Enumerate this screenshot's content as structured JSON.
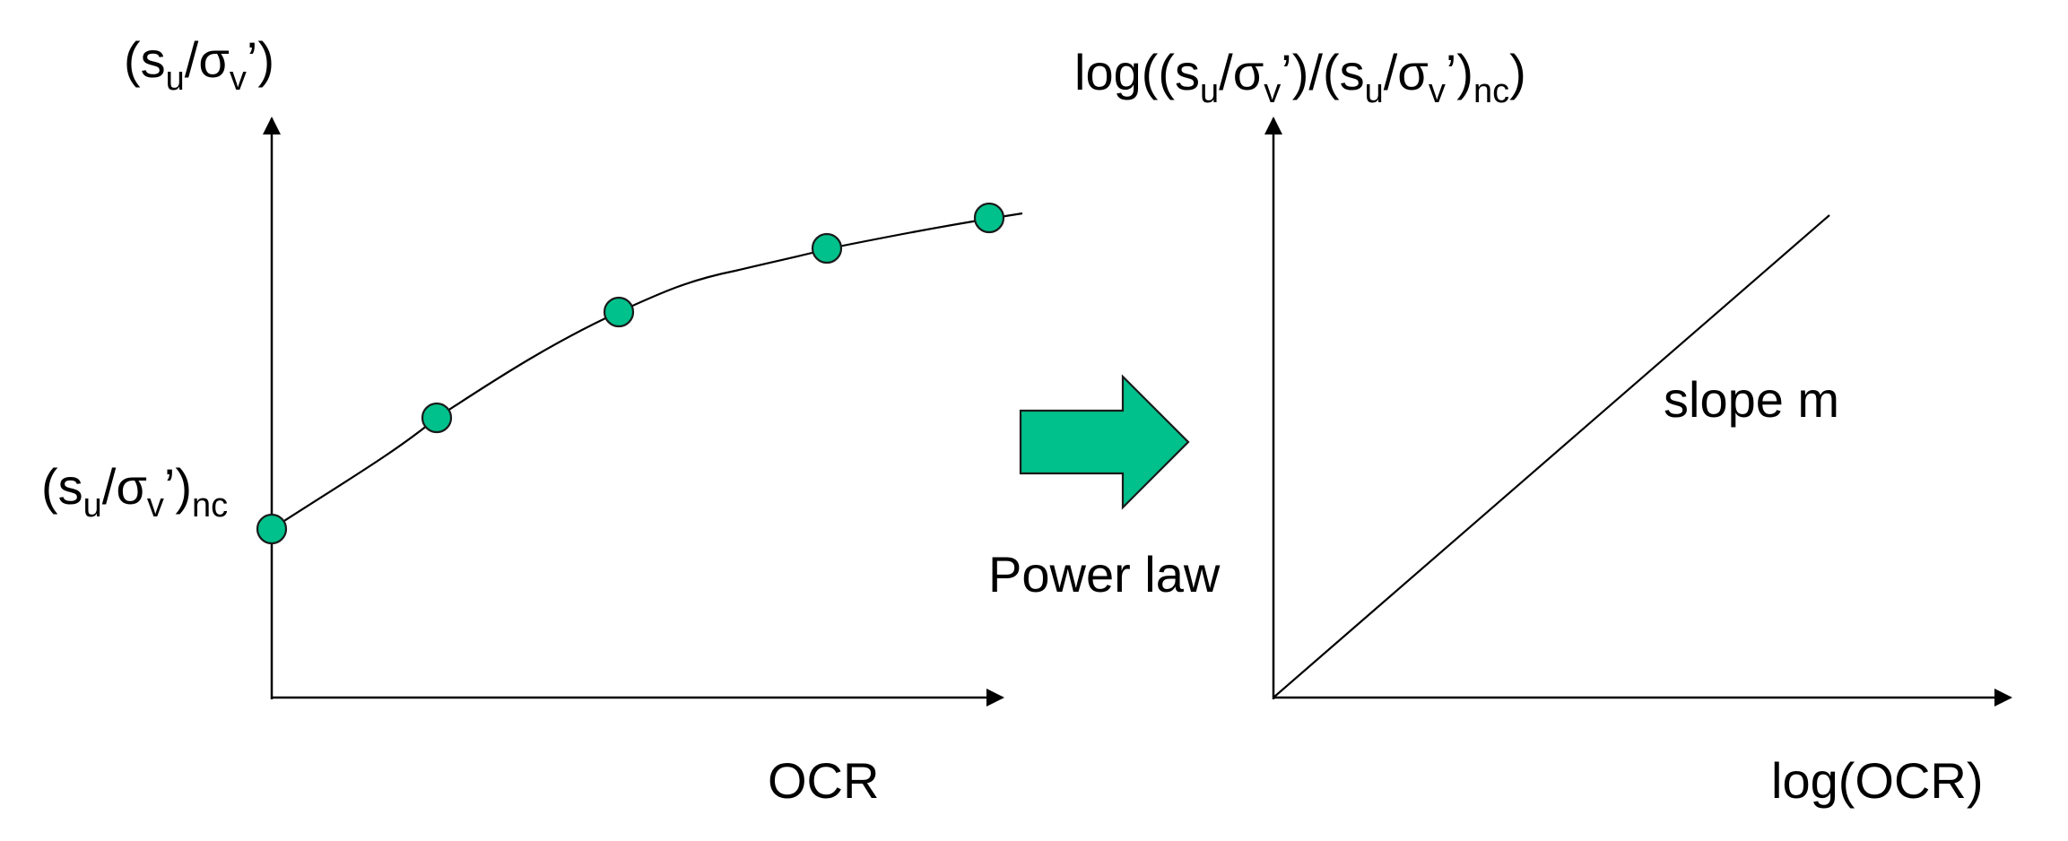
{
  "left_plot": {
    "y_axis_label": {
      "open": "(s",
      "sub_u": "u",
      "slash_sigma": "/σ",
      "sub_v": "v",
      "close": "’)"
    },
    "y_intercept_label": {
      "open": "(s",
      "sub_u": "u",
      "slash_sigma": "/σ",
      "sub_v": "v",
      "close": "’)",
      "sub_nc": "nc"
    },
    "x_axis_label": "OCR",
    "curve_color": "#000000",
    "point_fill": "#00C08B",
    "point_stroke": "#1a1a1a",
    "axis_color": "#000000"
  },
  "transition": {
    "arrow_icon": "right-arrow-icon",
    "arrow_fill": "#00C08B",
    "label": "Power law"
  },
  "right_plot": {
    "y_axis_label": {
      "prefix": "log((s",
      "sub_u1": "u",
      "mid1": "/σ",
      "sub_v1": "v",
      "mid2": "’)/(s",
      "sub_u2": "u",
      "mid3": "/σ",
      "sub_v2": "v",
      "mid4": "’)",
      "sub_nc": "nc",
      "suffix": ")"
    },
    "x_axis_label": "log(OCR)",
    "line_annotation": "slope m",
    "line_color": "#000000"
  }
}
